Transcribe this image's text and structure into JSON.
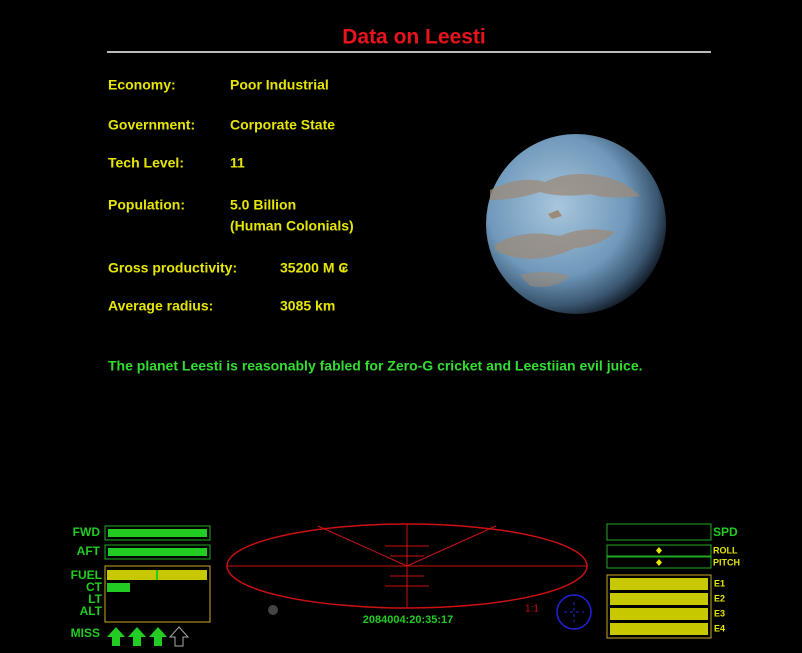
{
  "header": {
    "title": "Data on Leesti"
  },
  "info": {
    "rows": [
      {
        "label": "Economy:",
        "value": "Poor Industrial"
      },
      {
        "label": "Government:",
        "value": "Corporate State"
      },
      {
        "label": "Tech Level:",
        "value": "11"
      },
      {
        "label": "Population:",
        "value": "5.0 Billion",
        "value_detail": "(Human Colonials)"
      },
      {
        "label": "Gross productivity:",
        "value": "35200 M ₢"
      },
      {
        "label": "Average radius:",
        "value": "3085 km"
      }
    ]
  },
  "description": "The planet Leesti is reasonably fabled for Zero-G cricket and Leestiian evil juice.",
  "hud": {
    "fwd": "FWD",
    "aft": "AFT",
    "fuel": "FUEL",
    "ct": "CT",
    "lt": "LT",
    "alt": "ALT",
    "miss": "MISS",
    "spd": "SPD",
    "roll": "ROLL",
    "pitch": "PITCH",
    "e1": "E1",
    "e2": "E2",
    "e3": "E3",
    "e4": "E4",
    "clock": "2084004:20:35:17",
    "scale": "1:1"
  }
}
